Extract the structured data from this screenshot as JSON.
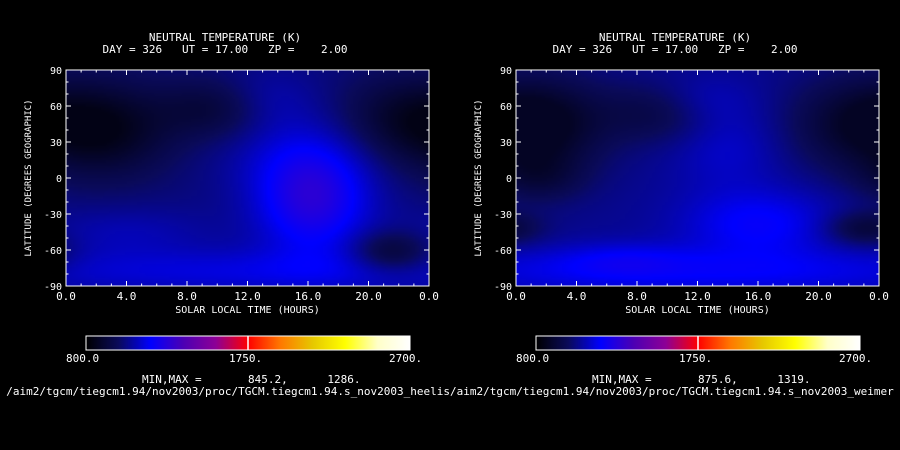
{
  "colors": {
    "background": "#000000",
    "foreground": "#ffffff",
    "colorbar": [
      "#000000",
      "#0a0a5a",
      "#0000ff",
      "#4b00b4",
      "#8c0096",
      "#ff0000",
      "#ff7800",
      "#e6c800",
      "#ffff00",
      "#ffffc8",
      "#ffffff"
    ]
  },
  "chart_data": [
    {
      "type": "heatmap",
      "title": "NEUTRAL TEMPERATURE (K)",
      "subtitle": "DAY = 326   UT = 17.00   ZP =    2.00",
      "xlabel": "SOLAR LOCAL TIME (HOURS)",
      "ylabel": "LATITUDE (DEGREES GEOGRAPHIC)",
      "xlim": [
        0,
        24
      ],
      "ylim": [
        -90,
        90
      ],
      "xticks": [
        "0.0",
        "4.0",
        "8.0",
        "12.0",
        "16.0",
        "20.0",
        "0.0"
      ],
      "yticks": [
        "-90",
        "-60",
        "-30",
        "0",
        "30",
        "60",
        "90"
      ],
      "colorbar": {
        "min": 800.0,
        "max": 2700.0,
        "labels": [
          "800.0",
          "1750.",
          "2700."
        ]
      },
      "minmax_text": "MIN,MAX =       845.2,      1286.",
      "source": "/aim2/tgcm/tiegcm1.94/nov2003/proc/TGCM.tiegcm1.94.s_nov2003_heelis",
      "min": 845.2,
      "max": 1286,
      "field": {
        "base": 1030,
        "blobs": [
          {
            "x": 2.5,
            "y": 40,
            "sx": 3.2,
            "sy": 28,
            "a": -170
          },
          {
            "x": 10.0,
            "y": 58,
            "sx": 2.6,
            "sy": 18,
            "a": -120
          },
          {
            "x": 22.0,
            "y": 50,
            "sx": 3.0,
            "sy": 25,
            "a": -110
          },
          {
            "x": 16.3,
            "y": -18,
            "sx": 2.6,
            "sy": 32,
            "a": 240
          },
          {
            "x": 13.0,
            "y": 65,
            "sx": 2.4,
            "sy": 18,
            "a": 70
          },
          {
            "x": 15.0,
            "y": 20,
            "sx": 3.5,
            "sy": 25,
            "a": 60
          },
          {
            "x": 12.0,
            "y": -78,
            "sx": 14,
            "sy": 14,
            "a": 110
          },
          {
            "x": 4.0,
            "y": -45,
            "sx": 4.0,
            "sy": 15,
            "a": 60
          },
          {
            "x": 21.5,
            "y": -62,
            "sx": 1.8,
            "sy": 12,
            "a": -150
          }
        ]
      }
    },
    {
      "type": "heatmap",
      "title": "NEUTRAL TEMPERATURE (K)",
      "subtitle": "DAY = 326   UT = 17.00   ZP =    2.00",
      "xlabel": "SOLAR LOCAL TIME (HOURS)",
      "ylabel": "LATITUDE (DEGREES GEOGRAPHIC)",
      "xlim": [
        0,
        24
      ],
      "ylim": [
        -90,
        90
      ],
      "xticks": [
        "0.0",
        "4.0",
        "8.0",
        "12.0",
        "16.0",
        "20.0",
        "0.0"
      ],
      "yticks": [
        "-90",
        "-60",
        "-30",
        "0",
        "30",
        "60",
        "90"
      ],
      "colorbar": {
        "min": 800.0,
        "max": 2700.0,
        "labels": [
          "800.0",
          "1750.",
          "2700."
        ]
      },
      "minmax_text": "MIN,MAX =       875.6,      1319.",
      "source": "/aim2/tgcm/tiegcm1.94/nov2003/proc/TGCM.tiegcm1.94.s_nov2003_weimer",
      "min": 875.6,
      "max": 1319,
      "field": {
        "base": 1050,
        "blobs": [
          {
            "x": 2.0,
            "y": 45,
            "sx": 3.0,
            "sy": 28,
            "a": -160
          },
          {
            "x": 9.5,
            "y": 55,
            "sx": 2.6,
            "sy": 18,
            "a": -110
          },
          {
            "x": 22.0,
            "y": 45,
            "sx": 3.2,
            "sy": 28,
            "a": -120
          },
          {
            "x": 1.5,
            "y": 0,
            "sx": 2.2,
            "sy": 15,
            "a": -90
          },
          {
            "x": 14.0,
            "y": 25,
            "sx": 2.6,
            "sy": 25,
            "a": 70
          },
          {
            "x": 12.0,
            "y": 65,
            "sx": 2.5,
            "sy": 15,
            "a": 60
          },
          {
            "x": 16.0,
            "y": -38,
            "sx": 3.5,
            "sy": 20,
            "a": 140
          },
          {
            "x": 12.0,
            "y": -78,
            "sx": 14,
            "sy": 14,
            "a": 120
          },
          {
            "x": 7.0,
            "y": -68,
            "sx": 3.0,
            "sy": 10,
            "a": 70
          },
          {
            "x": 23.0,
            "y": -42,
            "sx": 1.8,
            "sy": 10,
            "a": -140
          }
        ]
      }
    }
  ]
}
